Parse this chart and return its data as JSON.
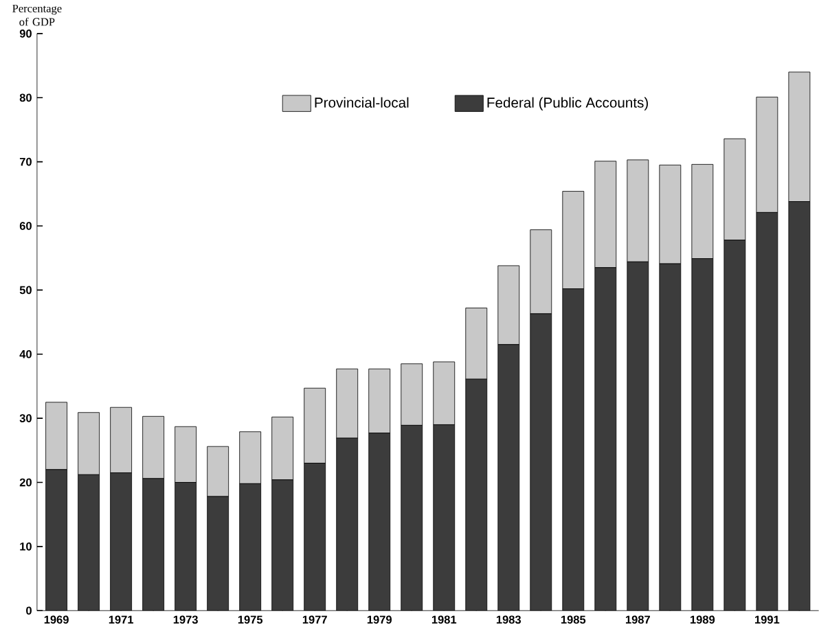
{
  "chart_data": {
    "type": "bar",
    "stacked": true,
    "ylabel": "Percentage of GDP",
    "categories": [
      "1969",
      null,
      "1971",
      null,
      "1973",
      null,
      "1975",
      null,
      "1977",
      null,
      "1979",
      null,
      "1981",
      null,
      "1983",
      null,
      "1985",
      null,
      "1987",
      null,
      "1989",
      null,
      "1991",
      null
    ],
    "series": [
      {
        "name": "Federal (Public Accounts)",
        "color": "#3c3c3c",
        "values": [
          22.0,
          21.2,
          21.5,
          20.6,
          20.0,
          17.8,
          19.8,
          20.4,
          23.0,
          26.9,
          27.7,
          28.9,
          29.0,
          36.1,
          41.5,
          46.3,
          50.2,
          53.5,
          54.4,
          54.1,
          54.9,
          57.8,
          62.1,
          63.8
        ]
      },
      {
        "name": "Provincial-local",
        "color": "#c8c8c8",
        "values": [
          10.5,
          9.7,
          10.2,
          9.7,
          8.7,
          7.8,
          8.1,
          9.8,
          11.7,
          10.8,
          10.0,
          9.6,
          9.8,
          11.1,
          12.3,
          13.1,
          15.2,
          16.6,
          15.9,
          15.4,
          14.7,
          15.8,
          18.0,
          20.2
        ]
      }
    ],
    "ylim": [
      0,
      90
    ],
    "yticks": [
      0,
      10,
      20,
      30,
      40,
      50,
      60,
      70,
      80,
      90
    ],
    "legend": "top",
    "grid": false
  }
}
